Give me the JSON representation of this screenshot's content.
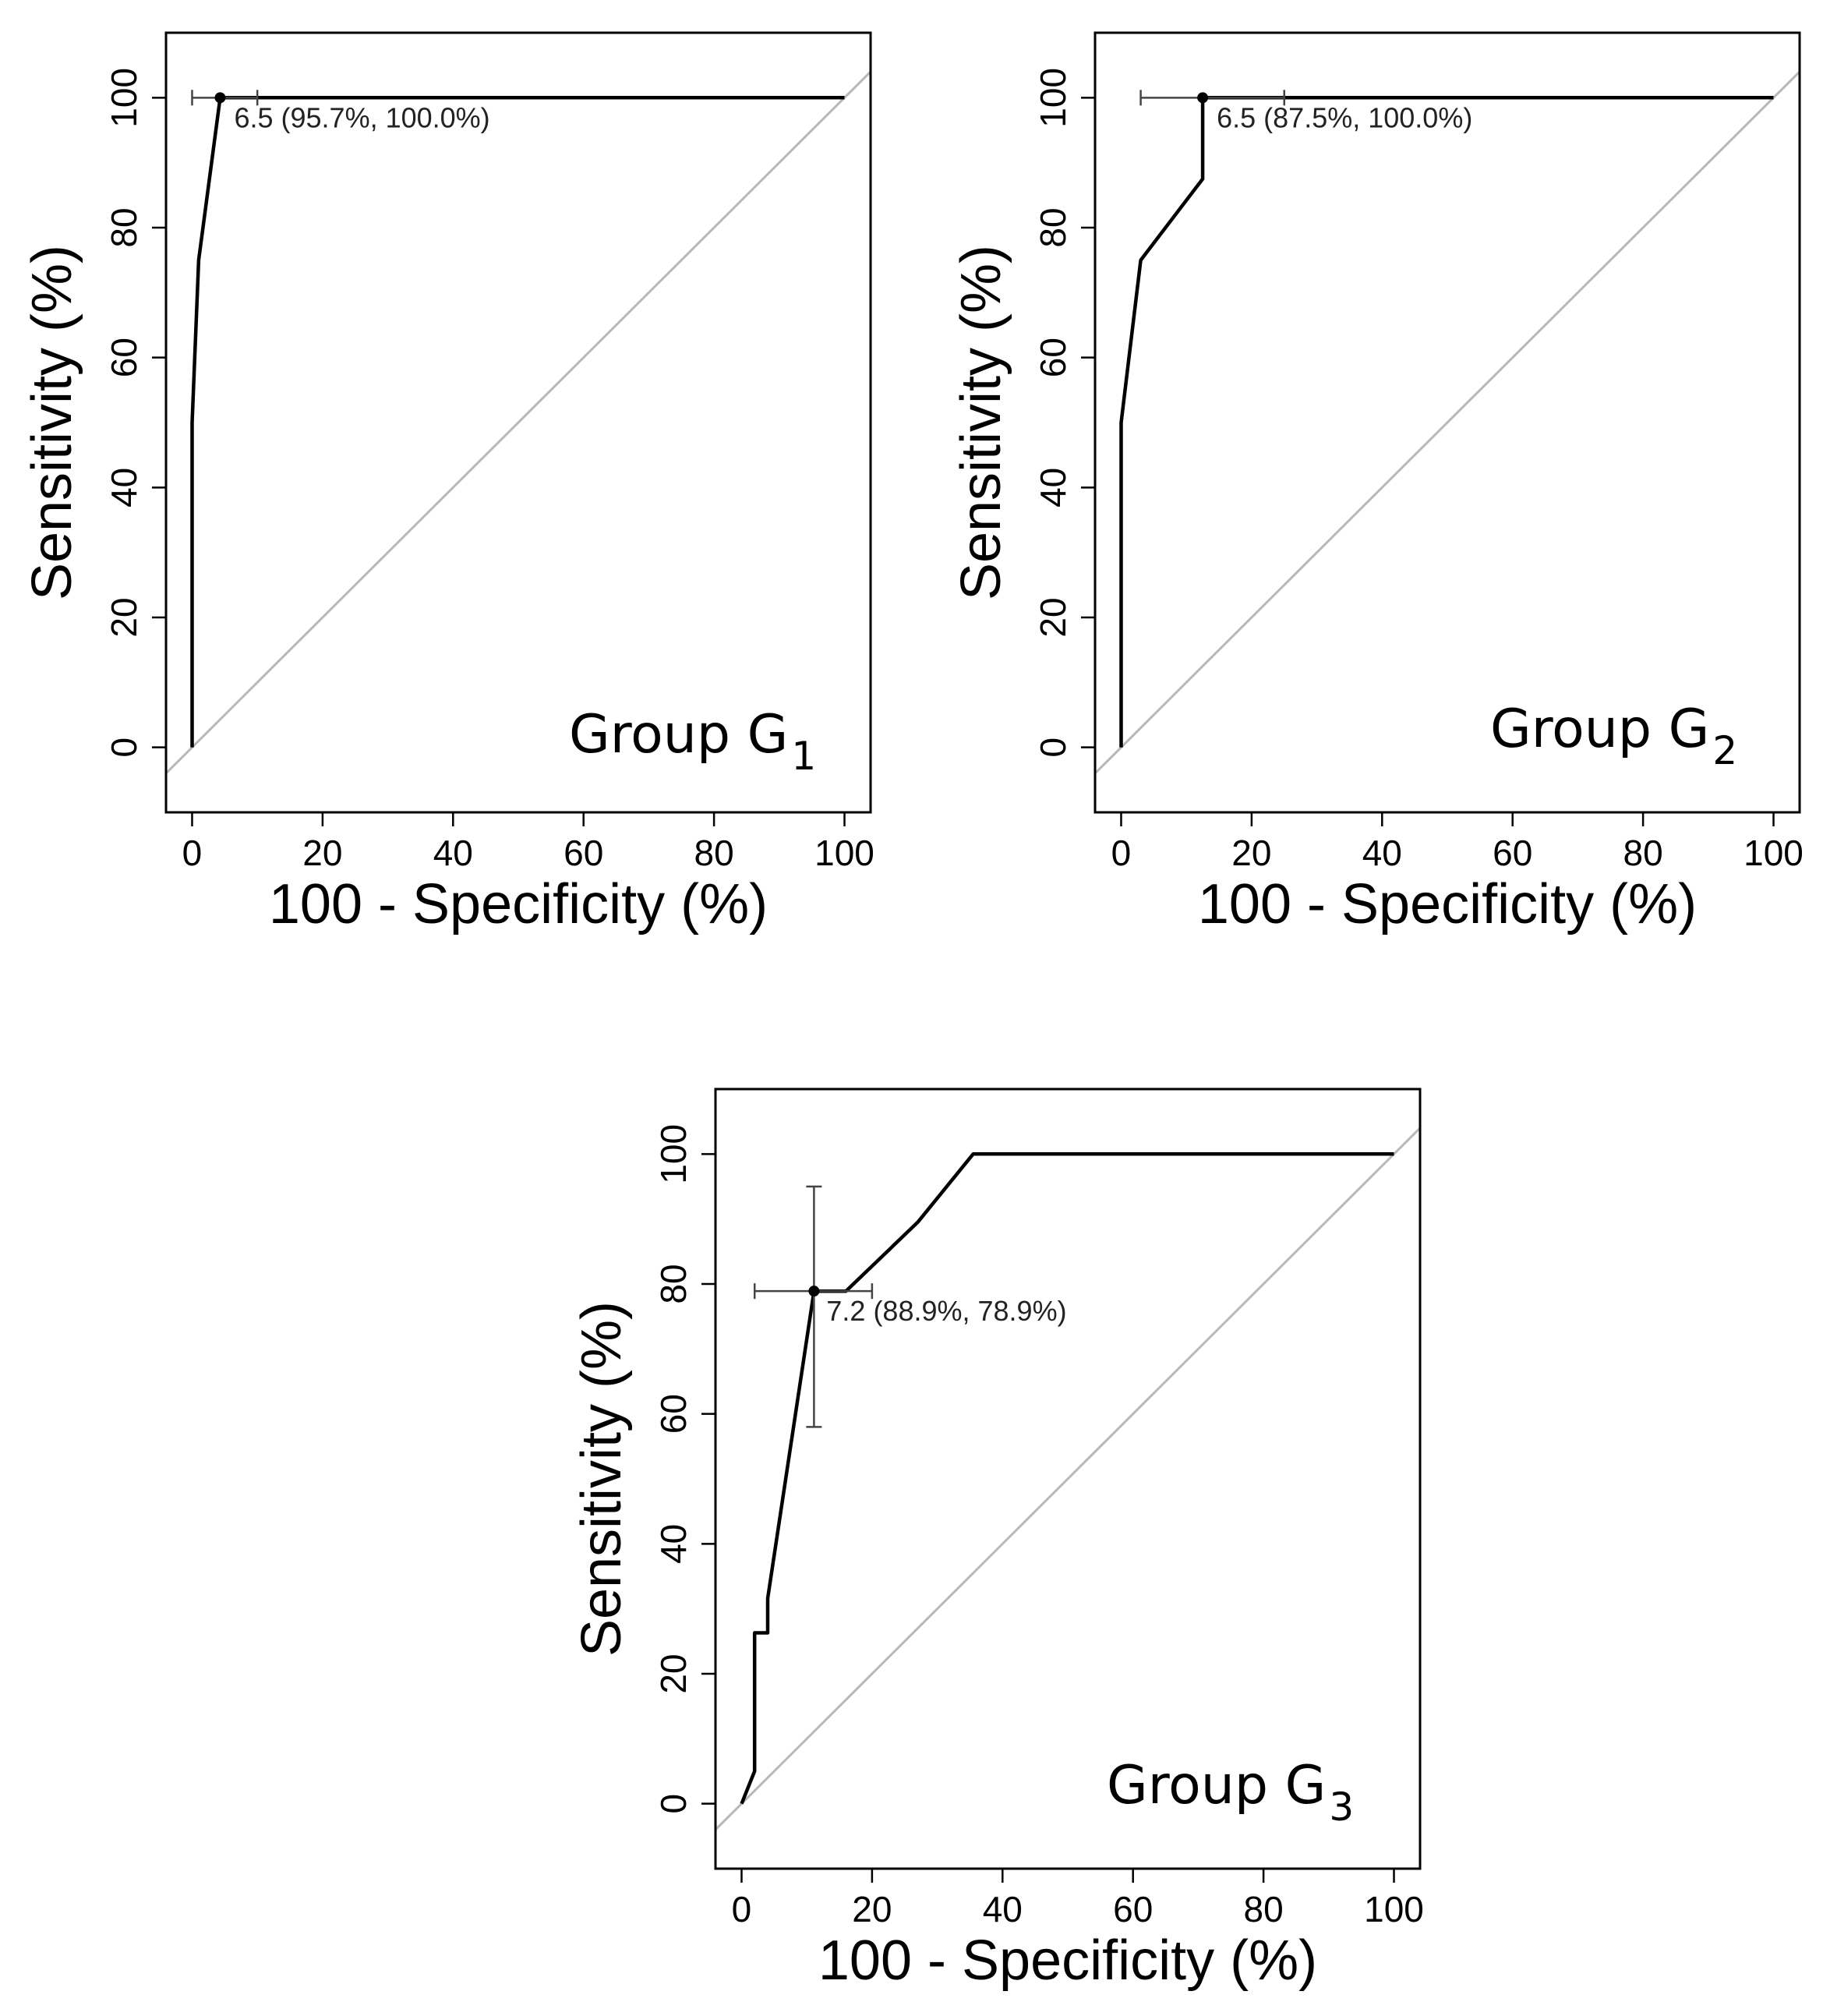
{
  "chart_data": [
    {
      "type": "line",
      "xlabel": "100 - Specificity (%)",
      "ylabel": "Sensitivity (%)",
      "xlim": [
        -4,
        104
      ],
      "ylim": [
        -10,
        110
      ],
      "xticks": [
        "0",
        "20",
        "40",
        "60",
        "80",
        "100"
      ],
      "yticks": [
        "0",
        "20",
        "40",
        "60",
        "80",
        "100"
      ],
      "group_label": {
        "main": "Group G",
        "sub": "1"
      },
      "grid": false,
      "diagonal_reference": true,
      "roc": {
        "x": [
          0,
          0,
          1,
          4.3,
          100
        ],
        "y": [
          0,
          50,
          75,
          100,
          100
        ]
      },
      "best_point": {
        "x": 4.3,
        "y": 100,
        "label": "6.5 (95.7%, 100.0%)",
        "x_ci": [
          0,
          10
        ],
        "y_ci": null
      }
    },
    {
      "type": "line",
      "xlabel": "100 - Specificity (%)",
      "ylabel": "Sensitivity (%)",
      "xlim": [
        -4,
        104
      ],
      "ylim": [
        -10,
        110
      ],
      "xticks": [
        "0",
        "20",
        "40",
        "60",
        "80",
        "100"
      ],
      "yticks": [
        "0",
        "20",
        "40",
        "60",
        "80",
        "100"
      ],
      "group_label": {
        "main": "Group G",
        "sub": "2"
      },
      "grid": false,
      "diagonal_reference": true,
      "roc": {
        "x": [
          0,
          0,
          3,
          12.5,
          12.5,
          100
        ],
        "y": [
          0,
          50,
          75,
          87.5,
          100,
          100
        ]
      },
      "best_point": {
        "x": 12.5,
        "y": 100,
        "label": "6.5 (87.5%, 100.0%)",
        "x_ci": [
          3,
          25
        ],
        "y_ci": null
      }
    },
    {
      "type": "line",
      "xlabel": "100 - Specificity (%)",
      "ylabel": "Sensitivity (%)",
      "xlim": [
        -4,
        104
      ],
      "ylim": [
        -10,
        110
      ],
      "xticks": [
        "0",
        "20",
        "40",
        "60",
        "80",
        "100"
      ],
      "yticks": [
        "0",
        "20",
        "40",
        "60",
        "80",
        "100"
      ],
      "group_label": {
        "main": "Group G",
        "sub": "3"
      },
      "grid": false,
      "diagonal_reference": true,
      "roc": {
        "x": [
          0,
          2,
          2,
          4,
          4,
          11.1,
          11.1,
          16,
          27,
          35.5,
          100
        ],
        "y": [
          0,
          5,
          26.3,
          26.3,
          31.6,
          78.9,
          78.9,
          78.9,
          89.5,
          100,
          100
        ]
      },
      "best_point": {
        "x": 11.1,
        "y": 78.9,
        "label": "7.2 (88.9%, 78.9%)",
        "x_ci": [
          2,
          20
        ],
        "y_ci": [
          58,
          95
        ]
      }
    }
  ]
}
